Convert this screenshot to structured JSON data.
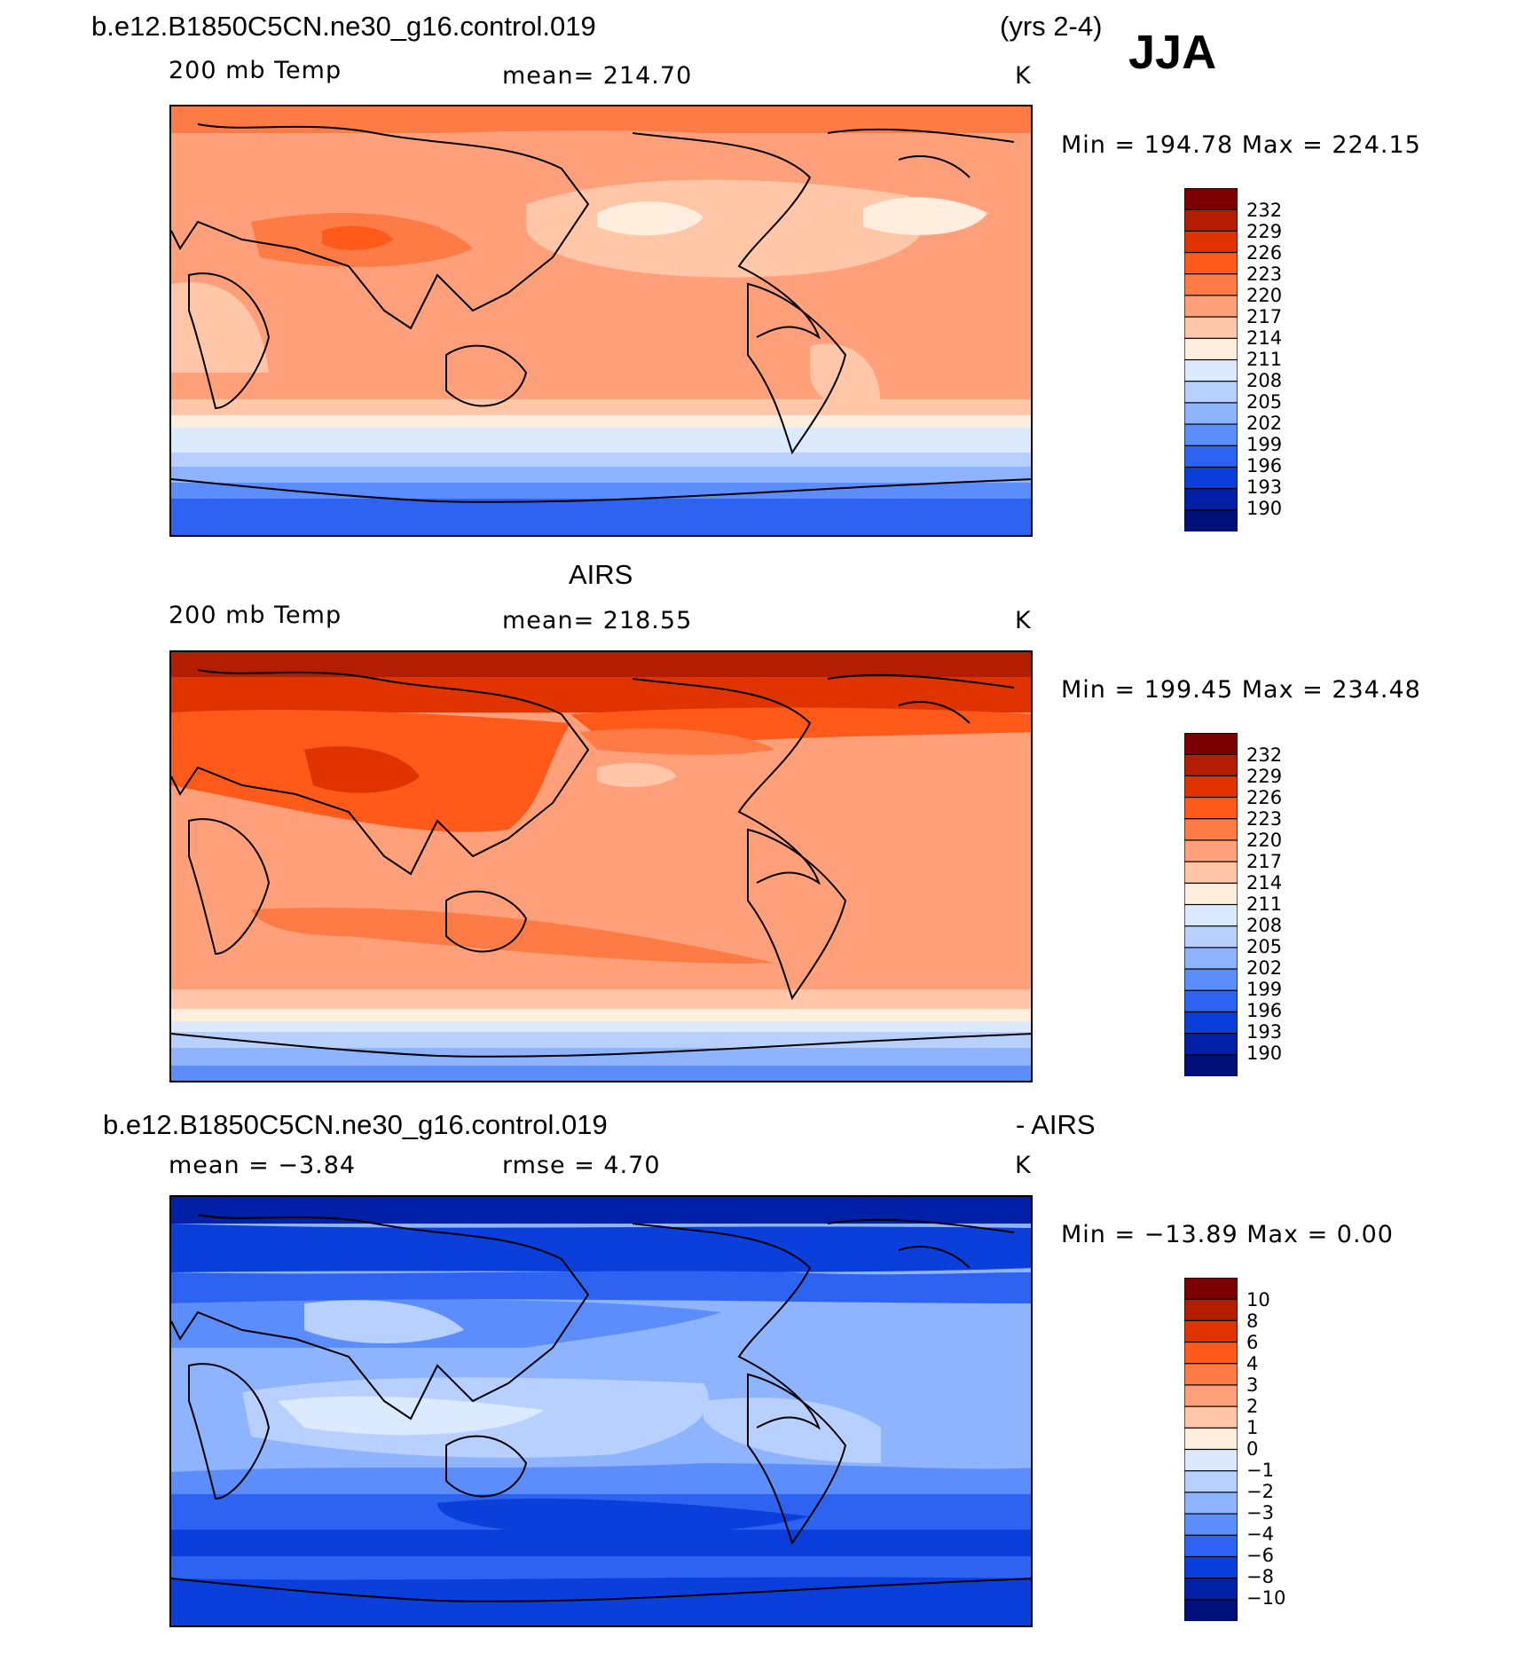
{
  "season": "JJA",
  "panels": [
    {
      "case": "b.e12.B1850C5CN.ne30_g16.control.019",
      "years": "(yrs 2-4)",
      "variable": "200 mb Temp",
      "mean": "mean=  214.70",
      "units": "K",
      "minmax": "Min  =  194.78  Max  =  224.15",
      "levels": [
        "232",
        "229",
        "226",
        "223",
        "220",
        "217",
        "214",
        "211",
        "208",
        "205",
        "202",
        "199",
        "196",
        "193",
        "190"
      ]
    },
    {
      "title": "AIRS",
      "variable": "200 mb Temp",
      "mean": "mean=  218.55",
      "units": "K",
      "minmax": "Min  =  199.45  Max  =  234.48",
      "levels": [
        "232",
        "229",
        "226",
        "223",
        "220",
        "217",
        "214",
        "211",
        "208",
        "205",
        "202",
        "199",
        "196",
        "193",
        "190"
      ]
    },
    {
      "case": "b.e12.B1850C5CN.ne30_g16.control.019",
      "suffix": "- AIRS",
      "mean": "mean  =    −3.84",
      "rmse": "rmse  =     4.70",
      "units": "K",
      "minmax": "Min  =  −13.89  Max  =     0.00",
      "levels": [
        "10",
        "8",
        "6",
        "4",
        "3",
        "2",
        "1",
        "0",
        "−1",
        "−2",
        "−3",
        "−4",
        "−6",
        "−8",
        "−10"
      ]
    }
  ],
  "colors": {
    "scale": [
      "#7d0000",
      "#b31d00",
      "#e03300",
      "#ff5a1a",
      "#ff7b45",
      "#ffa07a",
      "#ffc6a8",
      "#ffeedd",
      "#dceaff",
      "#b7d0ff",
      "#8eb3ff",
      "#5c8dfc",
      "#2d63f0",
      "#0a3fdc",
      "#0020a8",
      "#00107a"
    ]
  }
}
